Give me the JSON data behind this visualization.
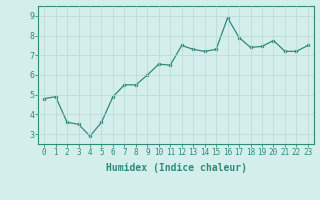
{
  "x": [
    0,
    1,
    2,
    3,
    4,
    5,
    6,
    7,
    8,
    9,
    10,
    11,
    12,
    13,
    14,
    15,
    16,
    17,
    18,
    19,
    20,
    21,
    22,
    23
  ],
  "y": [
    4.8,
    4.9,
    3.6,
    3.5,
    2.9,
    3.6,
    4.9,
    5.5,
    5.5,
    6.0,
    6.55,
    6.5,
    7.5,
    7.3,
    7.2,
    7.3,
    8.9,
    7.9,
    7.4,
    7.45,
    7.75,
    7.2,
    7.2,
    7.5
  ],
  "line_color": "#2e8b7a",
  "marker": "o",
  "markersize": 2.0,
  "linewidth": 0.9,
  "xlabel": "Humidex (Indice chaleur)",
  "xlabel_fontsize": 7,
  "xlabel_fontweight": "bold",
  "bg_color": "#d4eeec",
  "grid_color": "#b8d8d5",
  "tick_color": "#2e8b7a",
  "spine_color": "#2e8b7a",
  "ylim": [
    2.5,
    9.5
  ],
  "xlim": [
    -0.5,
    23.5
  ],
  "yticks": [
    3,
    4,
    5,
    6,
    7,
    8,
    9
  ],
  "xticks": [
    0,
    1,
    2,
    3,
    4,
    5,
    6,
    7,
    8,
    9,
    10,
    11,
    12,
    13,
    14,
    15,
    16,
    17,
    18,
    19,
    20,
    21,
    22,
    23
  ],
  "tick_fontsize": 5.5
}
